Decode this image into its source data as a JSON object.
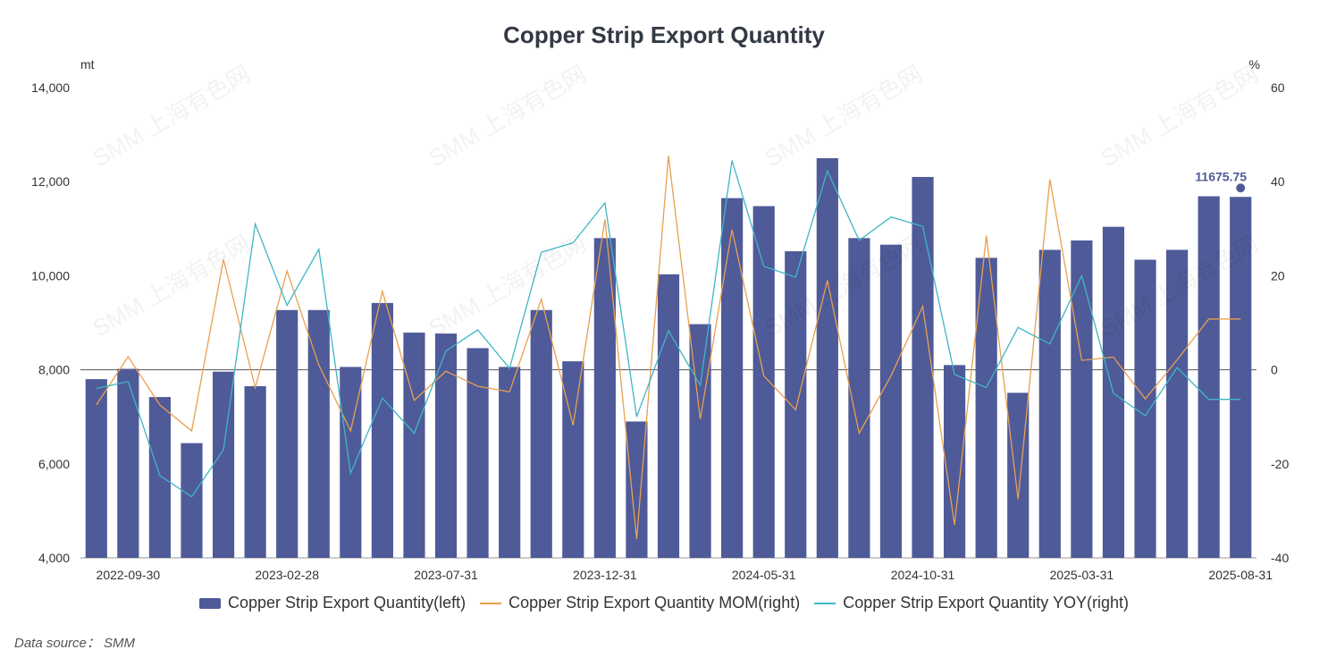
{
  "chart_data": {
    "type": "bar",
    "title": "Copper Strip Export Quantity",
    "left_unit": "mt",
    "right_unit": "%",
    "y_left": {
      "min": 4000,
      "max": 14000,
      "ticks": [
        4000,
        6000,
        8000,
        10000,
        12000,
        14000
      ],
      "tick_labels": [
        "4,000",
        "6,000",
        "8,000",
        "10,000",
        "12,000",
        "14,000"
      ]
    },
    "y_right": {
      "min": -40,
      "max": 60,
      "ticks": [
        -40,
        -20,
        0,
        20,
        40,
        60
      ],
      "tick_labels": [
        "-40",
        "-20",
        "0",
        "20",
        "40",
        "60"
      ]
    },
    "x": [
      "2022-08-31",
      "2022-09-30",
      "2022-10-31",
      "2022-11-30",
      "2022-12-31",
      "2023-01-31",
      "2023-02-28",
      "2023-03-31",
      "2023-04-30",
      "2023-05-31",
      "2023-06-30",
      "2023-07-31",
      "2023-08-31",
      "2023-09-30",
      "2023-10-31",
      "2023-11-30",
      "2023-12-31",
      "2024-01-31",
      "2024-02-29",
      "2024-03-31",
      "2024-04-30",
      "2024-05-31",
      "2024-06-30",
      "2024-07-31",
      "2024-08-31",
      "2024-09-30",
      "2024-10-31",
      "2024-11-30",
      "2024-12-31",
      "2025-01-31",
      "2025-02-28",
      "2025-03-31",
      "2025-04-30",
      "2025-05-31",
      "2025-06-30",
      "2025-07-31",
      "2025-08-31"
    ],
    "x_tick_labels": [
      "2022-09-30",
      "2023-02-28",
      "2023-07-31",
      "2023-12-31",
      "2024-05-31",
      "2024-10-31",
      "2025-03-31",
      "2025-08-31"
    ],
    "series": [
      {
        "name": "Copper Strip Export Quantity(left)",
        "type": "bar",
        "axis": "left",
        "color": "#4f5a98",
        "values": [
          7800,
          8020,
          7420,
          6440,
          7960,
          7650,
          9270,
          9270,
          8060,
          9420,
          8790,
          8770,
          8460,
          8060,
          9270,
          8180,
          10800,
          6900,
          10030,
          8970,
          11650,
          11480,
          10520,
          12500,
          10800,
          10660,
          12100,
          8100,
          10380,
          7510,
          10550,
          10750,
          11040,
          10340,
          10550,
          11690,
          11675.75
        ]
      },
      {
        "name": "Copper Strip Export Quantity MOM(right)",
        "type": "line",
        "axis": "right",
        "color": "#e8a050",
        "values": [
          -7.5,
          2.8,
          -7.5,
          -13,
          23.5,
          -3.8,
          21,
          1,
          -13,
          16.7,
          -6.5,
          -0.3,
          -3.5,
          -4.7,
          15,
          -11.8,
          32,
          -36,
          45.5,
          -10.5,
          29.8,
          -1.3,
          -8.5,
          19,
          -13.5,
          -1.3,
          13.5,
          -33,
          28.5,
          -27.5,
          40.5,
          2,
          2.7,
          -6.2,
          2.1,
          10.8,
          10.8
        ]
      },
      {
        "name": "Copper Strip Export Quantity YOY(right)",
        "type": "line",
        "axis": "right",
        "color": "#3fb6c6",
        "values": [
          -4,
          -2.5,
          -22.5,
          -27,
          -17,
          31,
          13.7,
          25.6,
          -22,
          -6,
          -13.5,
          4,
          8.5,
          0.3,
          25,
          27,
          35.5,
          -10,
          8.3,
          -3.3,
          44.5,
          22,
          19.7,
          42.3,
          27.5,
          32.5,
          30.5,
          -1,
          -3.8,
          9,
          5.5,
          20,
          -5,
          -9.8,
          0.5,
          -6.3,
          -6.3
        ]
      }
    ],
    "highlight_label": "11675.75",
    "legend_position": "bottom",
    "grid": false
  },
  "source_text": "Data source： SMM",
  "watermark_text": "SMM 上海有色网"
}
